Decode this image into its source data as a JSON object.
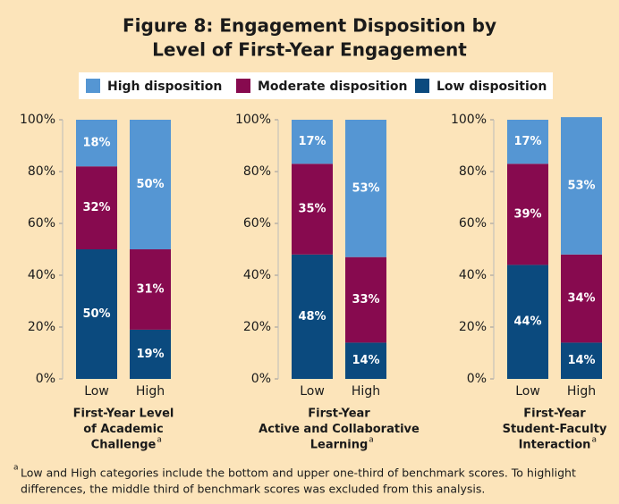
{
  "chart_data": {
    "type": "stacked_bar",
    "title": [
      "Figure 8: Engagement Disposition by",
      "Level of First-Year Engagement"
    ],
    "series": [
      {
        "name": "High disposition",
        "color": "#5596d3"
      },
      {
        "name": "Moderate disposition",
        "color": "#870a4f"
      },
      {
        "name": "Low disposition",
        "color": "#0b4a7e"
      }
    ],
    "ylim": [
      0,
      100
    ],
    "yticks": [
      {
        "value": 0,
        "label": "0%"
      },
      {
        "value": 20,
        "label": "20%"
      },
      {
        "value": 40,
        "label": "40%"
      },
      {
        "value": 60,
        "label": "60%"
      },
      {
        "value": 80,
        "label": "80%"
      },
      {
        "value": 100,
        "label": "100%"
      }
    ],
    "panels": [
      {
        "categories": [
          "Low",
          "High"
        ],
        "xlabel": [
          "First-Year Level",
          "of Academic",
          "Challenge"
        ],
        "xlabel_note": "a",
        "values": [
          [
            18,
            50
          ],
          [
            32,
            31
          ],
          [
            50,
            19
          ]
        ],
        "value_labels": [
          [
            "18%",
            "50%"
          ],
          [
            "32%",
            "31%"
          ],
          [
            "50%",
            "19%"
          ]
        ]
      },
      {
        "categories": [
          "Low",
          "High"
        ],
        "xlabel": [
          "First-Year",
          "Active and Collaborative",
          "Learning"
        ],
        "xlabel_note": "a",
        "values": [
          [
            17,
            53
          ],
          [
            35,
            33
          ],
          [
            48,
            14
          ]
        ],
        "value_labels": [
          [
            "17%",
            "53%"
          ],
          [
            "35%",
            "33%"
          ],
          [
            "48%",
            "14%"
          ]
        ]
      },
      {
        "categories": [
          "Low",
          "High"
        ],
        "xlabel": [
          "First-Year",
          "Student-Faculty",
          "Interaction"
        ],
        "xlabel_note": "a",
        "values": [
          [
            17,
            53
          ],
          [
            39,
            34
          ],
          [
            44,
            14
          ]
        ],
        "value_labels": [
          [
            "17%",
            "53%"
          ],
          [
            "39%",
            "34%"
          ],
          [
            "44%",
            "14%"
          ]
        ]
      }
    ],
    "footnote_mark": "a",
    "footnote": [
      "Low and High categories include the bottom and upper one-third of benchmark scores. To highlight",
      "differences, the middle third of benchmark scores was excluded from this analysis."
    ]
  }
}
